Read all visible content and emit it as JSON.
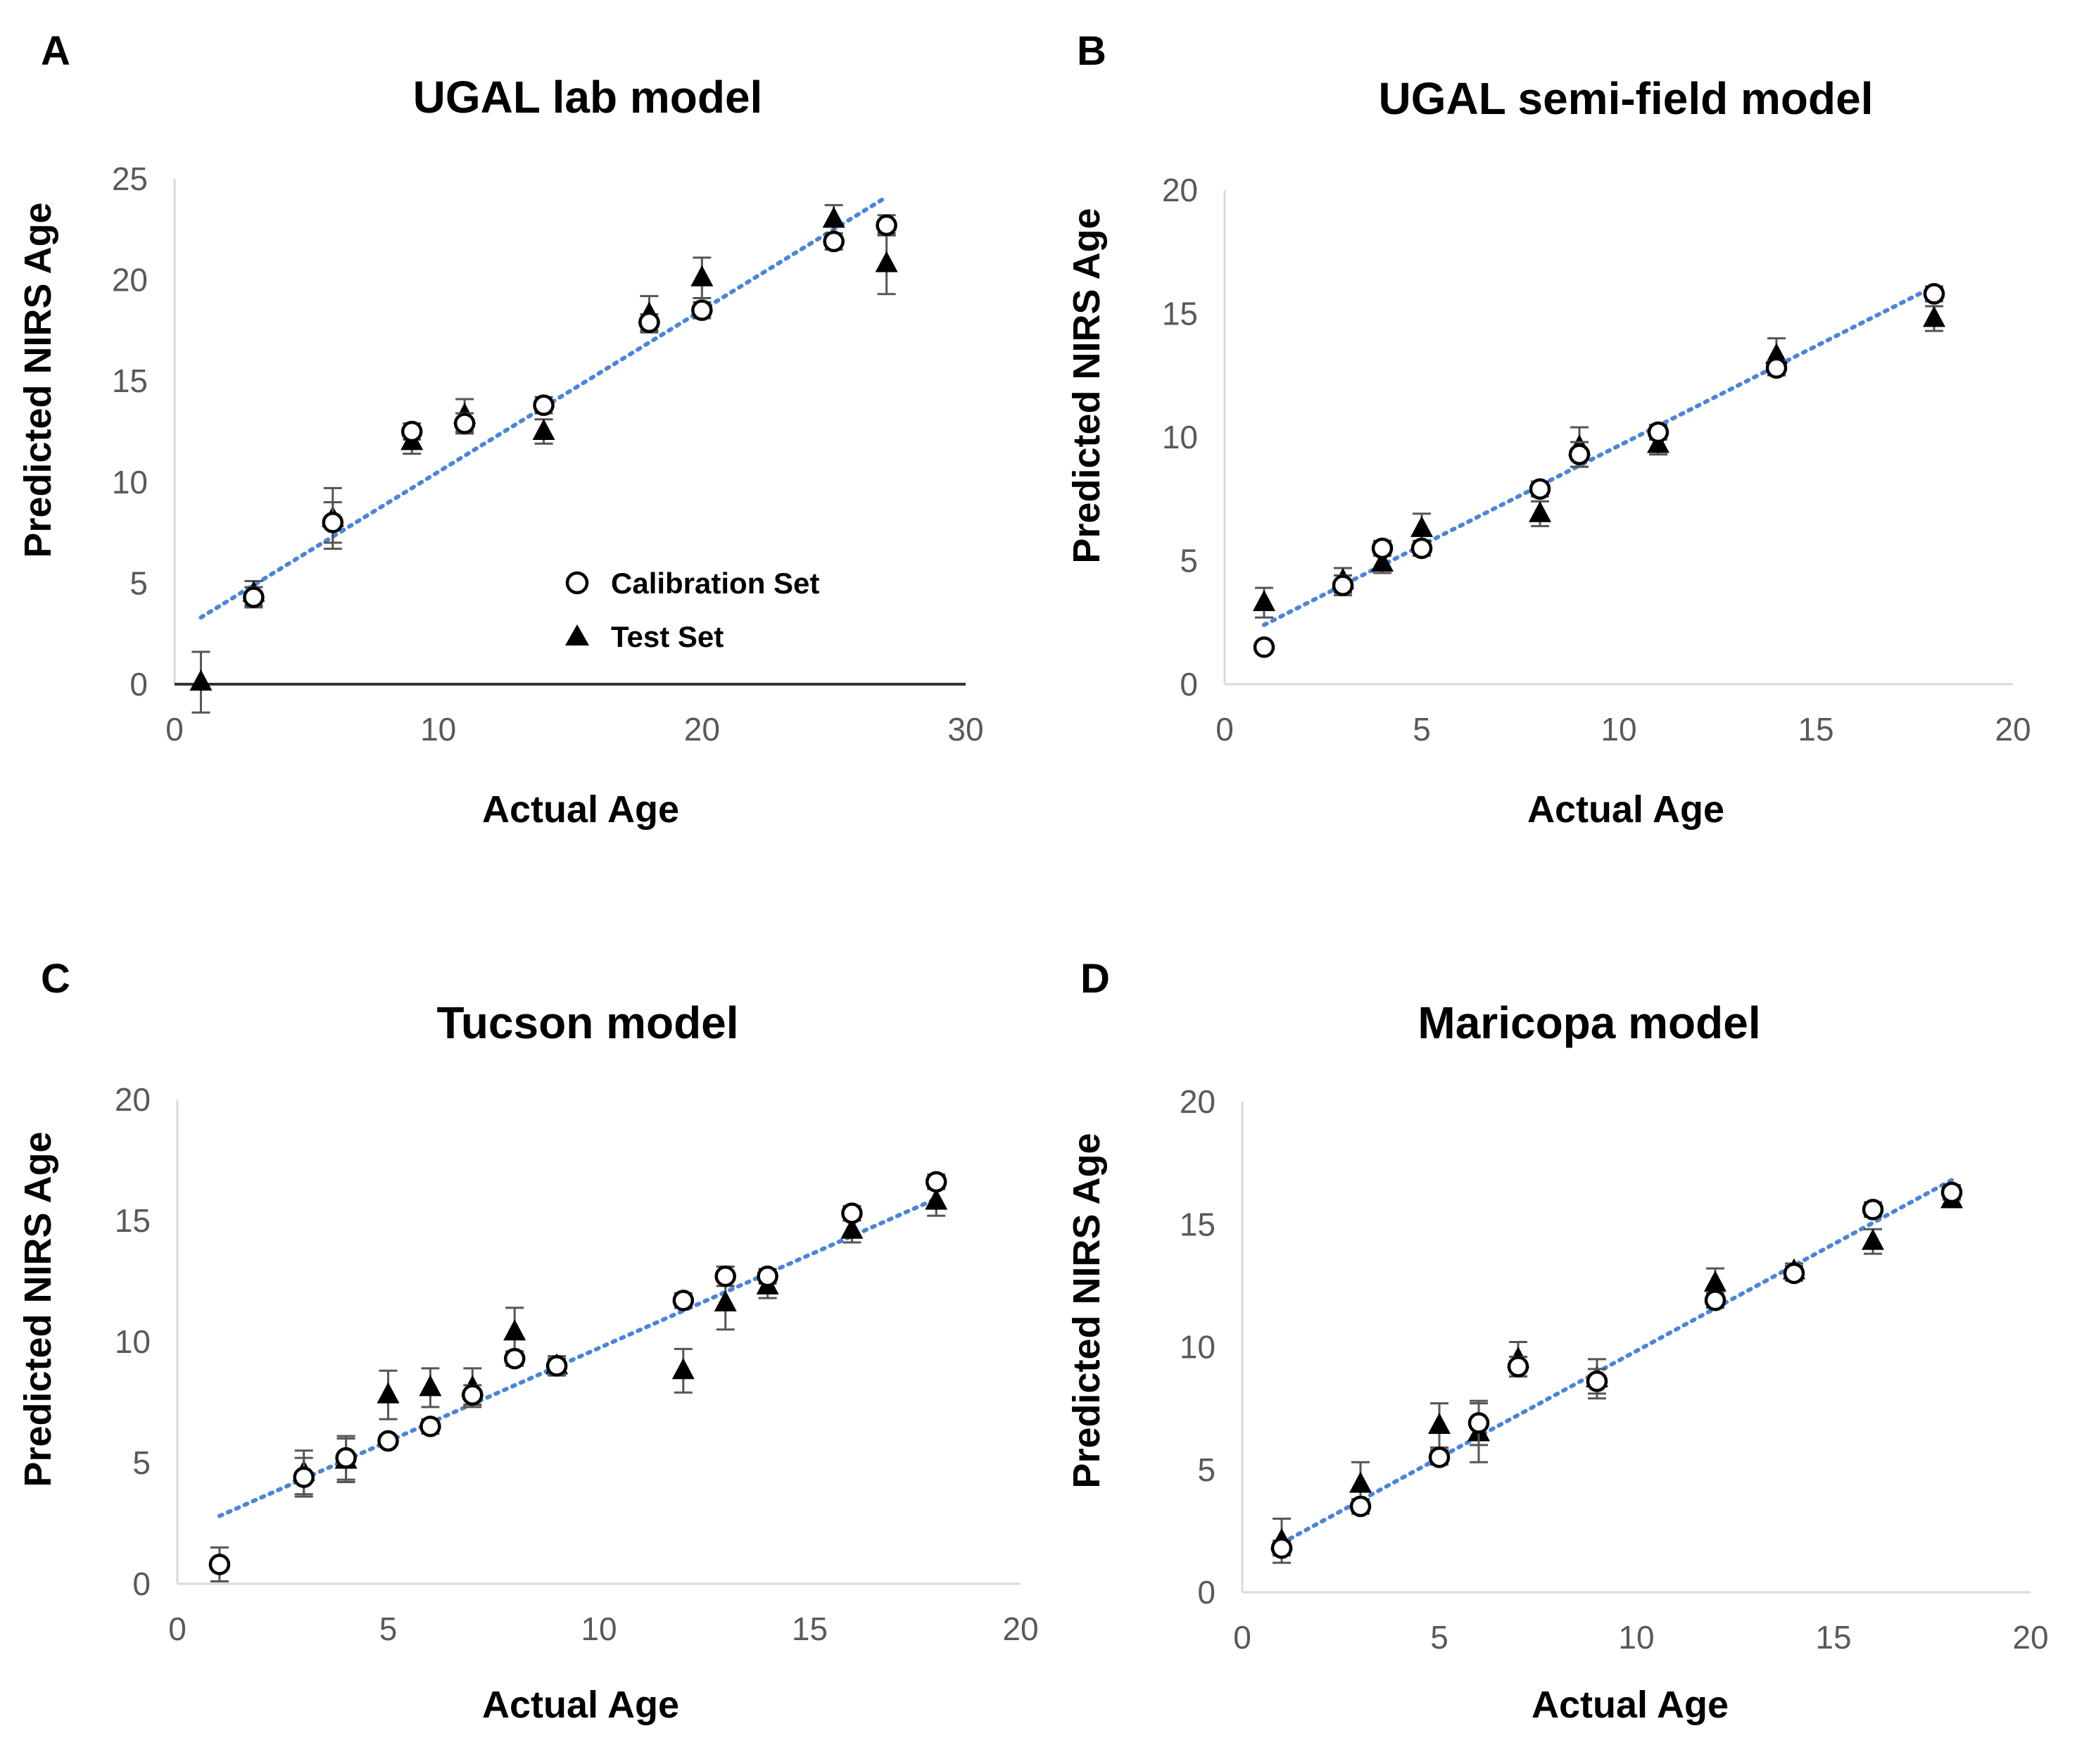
{
  "chart_data": [
    {
      "panel": "A",
      "type": "scatter",
      "title": "UGAL lab model",
      "xlabel": "Actual Age",
      "ylabel": "Predicted NIRS Age",
      "xlim": [
        0,
        30
      ],
      "ylim": [
        0,
        25
      ],
      "xticks": [
        0,
        10,
        20,
        30
      ],
      "yticks": [
        0,
        5,
        10,
        15,
        20,
        25
      ],
      "x_axis_line": true,
      "legend": {
        "position": "inside-bottom-right",
        "entries": [
          {
            "label": "Calibration Set",
            "marker": "open-circle"
          },
          {
            "label": "Test Set",
            "marker": "filled-triangle"
          }
        ]
      },
      "series": [
        {
          "marker": "open-circle",
          "points": [
            {
              "x": 3,
              "y": 4.3,
              "err": 0.5
            },
            {
              "x": 6,
              "y": 8.0,
              "err": 1.0
            },
            {
              "x": 9,
              "y": 12.5,
              "err": 0.4
            },
            {
              "x": 11,
              "y": 12.9,
              "err": 0.5
            },
            {
              "x": 14,
              "y": 13.8,
              "err": 0.4
            },
            {
              "x": 18,
              "y": 17.9,
              "err": 0.4
            },
            {
              "x": 20,
              "y": 18.5,
              "err": 0.4
            },
            {
              "x": 25,
              "y": 21.9,
              "err": 0.4
            },
            {
              "x": 27,
              "y": 22.7,
              "err": 0.5
            }
          ]
        },
        {
          "marker": "filled-triangle",
          "points": [
            {
              "x": 1,
              "y": 0.1,
              "err": 1.5
            },
            {
              "x": 3,
              "y": 4.5,
              "err": 0.6
            },
            {
              "x": 6,
              "y": 8.2,
              "err": 1.5
            },
            {
              "x": 9,
              "y": 12.0,
              "err": 0.6
            },
            {
              "x": 11,
              "y": 13.3,
              "err": 0.8
            },
            {
              "x": 14,
              "y": 12.5,
              "err": 0.6
            },
            {
              "x": 18,
              "y": 18.3,
              "err": 0.9
            },
            {
              "x": 20,
              "y": 20.1,
              "err": 1.0
            },
            {
              "x": 25,
              "y": 23.0,
              "err": 0.7
            },
            {
              "x": 27,
              "y": 20.8,
              "err": 1.5
            }
          ]
        }
      ],
      "trendline": {
        "style": "dotted",
        "color": "#4a86d8",
        "from": [
          1,
          3.3
        ],
        "to": [
          27,
          24.1
        ]
      }
    },
    {
      "panel": "B",
      "type": "scatter",
      "title": "UGAL semi-field model",
      "xlabel": "Actual Age",
      "ylabel": "Predicted NIRS Age",
      "xlim": [
        0,
        20
      ],
      "ylim": [
        0,
        20
      ],
      "xticks": [
        0,
        5,
        10,
        15,
        20
      ],
      "yticks": [
        0,
        5,
        10,
        15,
        20
      ],
      "x_axis_line": false,
      "series": [
        {
          "marker": "open-circle",
          "points": [
            {
              "x": 1,
              "y": 1.5,
              "err": 0
            },
            {
              "x": 3,
              "y": 4.0,
              "err": 0.4
            },
            {
              "x": 4,
              "y": 5.5,
              "err": 0.3
            },
            {
              "x": 5,
              "y": 5.5,
              "err": 0.3
            },
            {
              "x": 8,
              "y": 7.9,
              "err": 0.3
            },
            {
              "x": 9,
              "y": 9.3,
              "err": 0.5
            },
            {
              "x": 11,
              "y": 10.2,
              "err": 0.3
            },
            {
              "x": 14,
              "y": 12.8,
              "err": 0.3
            },
            {
              "x": 18,
              "y": 15.8,
              "err": 0.3
            }
          ]
        },
        {
          "marker": "filled-triangle",
          "points": [
            {
              "x": 1,
              "y": 3.3,
              "err": 0.6
            },
            {
              "x": 3,
              "y": 4.2,
              "err": 0.5
            },
            {
              "x": 4,
              "y": 4.9,
              "err": 0.4
            },
            {
              "x": 5,
              "y": 6.3,
              "err": 0.6
            },
            {
              "x": 8,
              "y": 6.9,
              "err": 0.5
            },
            {
              "x": 9,
              "y": 9.6,
              "err": 0.8
            },
            {
              "x": 11,
              "y": 9.7,
              "err": 0.4
            },
            {
              "x": 14,
              "y": 13.3,
              "err": 0.7
            },
            {
              "x": 18,
              "y": 14.8,
              "err": 0.5
            }
          ]
        }
      ],
      "trendline": {
        "style": "dotted",
        "color": "#4a86d8",
        "from": [
          1,
          2.4
        ],
        "to": [
          18,
          16.1
        ]
      }
    },
    {
      "panel": "C",
      "type": "scatter",
      "title": "Tucson model",
      "xlabel": "Actual Age",
      "ylabel": "Predicted NIRS Age",
      "xlim": [
        0,
        20
      ],
      "ylim": [
        0,
        20
      ],
      "xticks": [
        0,
        5,
        10,
        15,
        20
      ],
      "yticks": [
        0,
        5,
        10,
        15,
        20
      ],
      "x_axis_line": false,
      "series": [
        {
          "marker": "open-circle",
          "points": [
            {
              "x": 1,
              "y": 0.8,
              "err": 0.7
            },
            {
              "x": 3,
              "y": 4.4,
              "err": 0.8
            },
            {
              "x": 4,
              "y": 5.2,
              "err": 0.9
            },
            {
              "x": 5,
              "y": 5.9,
              "err": 0
            },
            {
              "x": 6,
              "y": 6.5,
              "err": 0.3
            },
            {
              "x": 7,
              "y": 7.8,
              "err": 0.4
            },
            {
              "x": 8,
              "y": 9.3,
              "err": 0.3
            },
            {
              "x": 9,
              "y": 9.0,
              "err": 0.3
            },
            {
              "x": 12,
              "y": 11.7,
              "err": 0.3
            },
            {
              "x": 13,
              "y": 12.7,
              "err": 0.4
            },
            {
              "x": 14,
              "y": 12.7,
              "err": 0.3
            },
            {
              "x": 16,
              "y": 15.3,
              "err": 0.3
            },
            {
              "x": 18,
              "y": 16.6,
              "err": 0.3
            }
          ]
        },
        {
          "marker": "filled-triangle",
          "points": [
            {
              "x": 3,
              "y": 4.6,
              "err": 0.9
            },
            {
              "x": 4,
              "y": 5.1,
              "err": 0.9
            },
            {
              "x": 5,
              "y": 7.8,
              "err": 1.0
            },
            {
              "x": 6,
              "y": 8.1,
              "err": 0.8
            },
            {
              "x": 7,
              "y": 8.1,
              "err": 0.8
            },
            {
              "x": 8,
              "y": 10.4,
              "err": 1.0
            },
            {
              "x": 9,
              "y": 9.0,
              "err": 0.4
            },
            {
              "x": 12,
              "y": 8.8,
              "err": 0.9
            },
            {
              "x": 13,
              "y": 11.6,
              "err": 1.1
            },
            {
              "x": 14,
              "y": 12.3,
              "err": 0.5
            },
            {
              "x": 16,
              "y": 14.6,
              "err": 0.5
            },
            {
              "x": 18,
              "y": 15.8,
              "err": 0.6
            }
          ]
        }
      ],
      "trendline": {
        "style": "dotted",
        "color": "#4a86d8",
        "from": [
          1,
          2.8
        ],
        "to": [
          18,
          15.9
        ]
      }
    },
    {
      "panel": "D",
      "type": "scatter",
      "title": "Maricopa model",
      "xlabel": "Actual Age",
      "ylabel": "Predicted NIRS Age",
      "xlim": [
        0,
        20
      ],
      "ylim": [
        0,
        20
      ],
      "xticks": [
        0,
        5,
        10,
        15,
        20
      ],
      "yticks": [
        0,
        5,
        10,
        15,
        20
      ],
      "x_axis_line": false,
      "series": [
        {
          "marker": "open-circle",
          "points": [
            {
              "x": 1,
              "y": 1.8,
              "err": 0.3
            },
            {
              "x": 3,
              "y": 3.5,
              "err": 0.3
            },
            {
              "x": 5,
              "y": 5.5,
              "err": 0.3
            },
            {
              "x": 6,
              "y": 6.9,
              "err": 0.9
            },
            {
              "x": 7,
              "y": 9.2,
              "err": 0.4
            },
            {
              "x": 9,
              "y": 8.6,
              "err": 0.5
            },
            {
              "x": 12,
              "y": 11.9,
              "err": 0.3
            },
            {
              "x": 14,
              "y": 13.0,
              "err": 0.3
            },
            {
              "x": 16,
              "y": 15.6,
              "err": 0.3
            },
            {
              "x": 18,
              "y": 16.3,
              "err": 0.3
            }
          ]
        },
        {
          "marker": "filled-triangle",
          "points": [
            {
              "x": 1,
              "y": 2.1,
              "err": 0.9
            },
            {
              "x": 3,
              "y": 4.4,
              "err": 0.9
            },
            {
              "x": 5,
              "y": 6.8,
              "err": 0.9
            },
            {
              "x": 6,
              "y": 6.5,
              "err": 1.2
            },
            {
              "x": 7,
              "y": 9.5,
              "err": 0.7
            },
            {
              "x": 9,
              "y": 8.7,
              "err": 0.8
            },
            {
              "x": 12,
              "y": 12.6,
              "err": 0.6
            },
            {
              "x": 14,
              "y": 13.1,
              "err": 0.3
            },
            {
              "x": 16,
              "y": 14.3,
              "err": 0.5
            },
            {
              "x": 18,
              "y": 16.0,
              "err": 0.3
            }
          ]
        }
      ],
      "trendline": {
        "style": "dotted",
        "color": "#4a86d8",
        "from": [
          1,
          2.0
        ],
        "to": [
          18,
          16.8
        ]
      }
    }
  ]
}
